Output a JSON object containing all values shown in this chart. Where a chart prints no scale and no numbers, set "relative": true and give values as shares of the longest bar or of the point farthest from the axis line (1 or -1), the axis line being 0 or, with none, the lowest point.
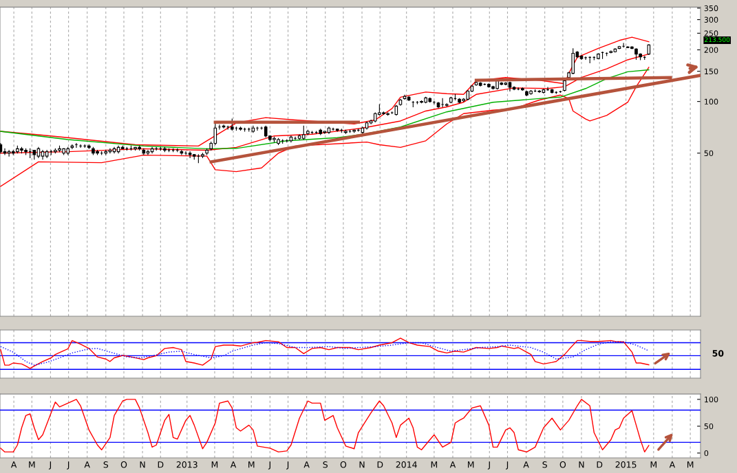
{
  "chart_data": [
    {
      "type": "candlestick",
      "log": true,
      "grid": "x",
      "tick_labels": "y",
      "x": [
        "2012-03-16",
        "2012-03-23",
        "2012-03-30",
        "2012-04-06",
        "2012-04-13",
        "2012-04-20",
        "2012-04-27",
        "2012-05-04",
        "2012-05-11",
        "2012-05-18",
        "2012-05-25",
        "2012-06-01",
        "2012-06-08",
        "2012-06-15",
        "2012-06-22",
        "2012-06-29",
        "2012-07-06",
        "2012-07-13",
        "2012-07-20",
        "2012-07-27",
        "2012-08-03",
        "2012-08-10",
        "2012-08-17",
        "2012-08-24",
        "2012-08-31",
        "2012-09-07",
        "2012-09-14",
        "2012-09-21",
        "2012-09-28",
        "2012-10-05",
        "2012-10-12",
        "2012-10-19",
        "2012-10-26",
        "2012-11-02",
        "2012-11-09",
        "2012-11-16",
        "2012-11-23",
        "2012-11-30",
        "2012-12-07",
        "2012-12-14",
        "2012-12-21",
        "2012-12-28",
        "2013-01-04",
        "2013-01-11",
        "2013-01-18",
        "2013-01-25",
        "2013-02-01",
        "2013-02-08",
        "2013-02-15",
        "2013-02-22",
        "2013-03-01",
        "2013-03-08",
        "2013-03-15",
        "2013-03-22",
        "2013-03-29",
        "2013-04-05",
        "2013-04-12",
        "2013-04-19",
        "2013-04-26",
        "2013-05-03",
        "2013-05-10",
        "2013-05-17",
        "2013-05-24",
        "2013-05-31",
        "2013-06-07",
        "2013-06-14",
        "2013-06-21",
        "2013-06-28",
        "2013-07-05",
        "2013-07-12",
        "2013-07-19",
        "2013-07-26",
        "2013-08-02",
        "2013-08-09",
        "2013-08-16",
        "2013-08-23",
        "2013-08-30",
        "2013-09-06",
        "2013-09-13",
        "2013-09-20",
        "2013-09-27",
        "2013-10-04",
        "2013-10-11",
        "2013-10-18",
        "2013-10-25",
        "2013-11-01",
        "2013-11-08",
        "2013-11-15",
        "2013-11-22",
        "2013-11-29",
        "2013-12-06",
        "2013-12-13",
        "2013-12-20",
        "2013-12-27",
        "2014-01-03",
        "2014-01-10",
        "2014-01-17",
        "2014-01-24",
        "2014-01-31",
        "2014-02-07",
        "2014-02-14",
        "2014-02-21",
        "2014-02-28",
        "2014-03-07",
        "2014-03-14",
        "2014-03-21",
        "2014-03-28",
        "2014-04-04",
        "2014-04-11",
        "2014-04-18",
        "2014-04-25",
        "2014-05-02",
        "2014-05-09",
        "2014-05-16",
        "2014-05-23",
        "2014-05-30",
        "2014-06-06",
        "2014-06-13",
        "2014-06-20",
        "2014-06-27",
        "2014-07-04",
        "2014-07-11",
        "2014-07-18",
        "2014-07-25",
        "2014-08-01",
        "2014-08-08",
        "2014-08-15",
        "2014-08-22",
        "2014-08-29",
        "2014-09-05",
        "2014-09-12",
        "2014-09-19",
        "2014-09-26",
        "2014-10-03",
        "2014-10-10",
        "2014-10-17",
        "2014-10-24",
        "2014-10-31",
        "2014-11-07",
        "2014-11-14",
        "2014-11-21",
        "2014-11-28",
        "2014-12-05",
        "2014-12-12",
        "2014-12-19",
        "2014-12-26",
        "2015-01-02",
        "2015-01-09",
        "2015-01-16",
        "2015-01-23",
        "2015-01-30",
        "2015-02-06",
        "2015-02-13",
        "2015-02-20",
        "2015-02-27"
      ],
      "ohlc": [
        [
          56,
          57,
          50,
          51
        ],
        [
          51,
          53,
          49,
          50
        ],
        [
          50,
          52,
          48,
          51
        ],
        [
          51,
          52,
          49,
          50
        ],
        [
          51,
          55,
          50,
          53
        ],
        [
          53,
          54,
          50,
          52
        ],
        [
          52,
          53,
          49,
          51
        ],
        [
          51,
          53,
          47,
          51
        ],
        [
          52,
          52,
          46,
          49
        ],
        [
          48,
          54,
          47,
          53
        ],
        [
          48,
          52,
          46,
          51
        ],
        [
          48,
          52,
          47,
          51
        ],
        [
          51,
          52,
          49,
          51
        ],
        [
          51,
          53,
          50,
          52
        ],
        [
          52,
          55,
          51,
          53
        ],
        [
          50,
          53,
          49,
          53
        ],
        [
          50,
          54,
          49,
          53
        ],
        [
          54,
          56,
          53,
          55
        ],
        [
          56,
          57,
          54,
          56
        ],
        [
          55,
          56,
          54,
          55
        ],
        [
          55,
          56,
          54,
          55
        ],
        [
          55,
          56,
          53,
          54
        ],
        [
          53,
          54,
          49,
          50
        ],
        [
          51,
          52,
          49,
          50
        ],
        [
          50,
          51,
          49,
          50
        ],
        [
          50,
          52,
          49,
          51
        ],
        [
          51,
          53,
          50,
          52
        ],
        [
          51,
          54,
          50,
          53
        ],
        [
          51,
          55,
          50,
          54
        ],
        [
          54,
          55,
          53,
          53
        ],
        [
          53,
          54,
          52,
          53
        ],
        [
          53,
          55,
          52,
          53
        ],
        [
          53,
          54,
          52,
          54
        ],
        [
          54,
          55,
          52,
          53
        ],
        [
          52,
          53,
          49,
          50
        ],
        [
          50,
          52,
          49,
          51
        ],
        [
          51,
          54,
          50,
          53
        ],
        [
          53,
          54,
          52,
          53
        ],
        [
          53,
          54,
          52,
          53
        ],
        [
          53,
          54,
          51,
          52
        ],
        [
          52,
          53,
          51,
          52
        ],
        [
          52,
          53,
          51,
          52
        ],
        [
          52,
          53,
          51,
          52
        ],
        [
          51,
          52,
          49,
          50
        ],
        [
          50,
          51,
          49,
          50
        ],
        [
          50,
          51,
          47,
          49
        ],
        [
          49,
          49,
          46,
          48
        ],
        [
          48,
          49,
          44,
          48
        ],
        [
          48,
          50,
          47,
          49
        ],
        [
          50,
          53,
          49,
          52
        ],
        [
          53,
          58,
          52,
          57
        ],
        [
          57,
          75,
          56,
          70
        ],
        [
          71,
          73,
          69,
          71
        ],
        [
          72,
          73,
          70,
          71
        ],
        [
          71,
          72,
          69,
          71
        ],
        [
          71,
          79,
          68,
          69
        ],
        [
          70,
          71,
          68,
          70
        ],
        [
          70,
          71,
          68,
          69
        ],
        [
          69,
          70,
          67,
          69
        ],
        [
          69,
          70,
          67,
          69
        ],
        [
          67,
          72,
          66,
          70
        ],
        [
          70,
          71,
          68,
          70
        ],
        [
          70,
          71,
          69,
          70
        ],
        [
          71,
          72,
          62,
          63
        ],
        [
          63,
          63,
          59,
          60
        ],
        [
          60,
          62,
          58,
          61
        ],
        [
          57,
          61,
          56,
          60
        ],
        [
          59,
          60,
          57,
          59
        ],
        [
          59,
          60,
          58,
          59
        ],
        [
          59,
          63,
          58,
          62
        ],
        [
          61,
          62,
          60,
          61
        ],
        [
          61,
          64,
          60,
          63
        ],
        [
          61,
          72,
          60,
          64
        ],
        [
          65,
          68,
          64,
          67
        ],
        [
          66,
          67,
          65,
          66
        ],
        [
          66,
          67,
          65,
          66
        ],
        [
          68,
          69,
          64,
          65
        ],
        [
          66,
          67,
          65,
          67
        ],
        [
          66,
          71,
          65,
          70
        ],
        [
          69,
          70,
          68,
          69
        ],
        [
          69,
          69,
          67,
          68
        ],
        [
          68,
          69,
          66,
          68
        ],
        [
          66,
          68,
          65,
          67
        ],
        [
          67,
          68,
          66,
          67
        ],
        [
          67,
          68,
          66,
          68
        ],
        [
          68,
          69,
          67,
          68
        ],
        [
          66,
          71,
          65,
          70
        ],
        [
          70,
          76,
          69,
          75
        ],
        [
          75,
          78,
          74,
          77
        ],
        [
          77,
          86,
          76,
          85
        ],
        [
          84,
          96,
          83,
          86
        ],
        [
          86,
          87,
          84,
          85
        ],
        [
          84,
          86,
          83,
          85
        ],
        [
          86,
          87,
          85,
          86
        ],
        [
          84,
          95,
          83,
          94
        ],
        [
          96,
          103,
          95,
          102
        ],
        [
          104,
          109,
          103,
          107
        ],
        [
          106,
          107,
          101,
          102
        ],
        [
          99,
          100,
          93,
          99
        ],
        [
          99,
          100,
          97,
          99
        ],
        [
          100,
          101,
          98,
          99
        ],
        [
          99,
          106,
          98,
          105
        ],
        [
          104,
          105,
          99,
          100
        ],
        [
          99,
          100,
          97,
          99
        ],
        [
          98,
          99,
          92,
          93
        ],
        [
          96,
          104,
          93,
          96
        ],
        [
          95,
          97,
          94,
          96
        ],
        [
          99,
          106,
          98,
          105
        ],
        [
          104,
          110,
          102,
          104
        ],
        [
          103,
          104,
          98,
          99
        ],
        [
          101,
          104,
          100,
          103
        ],
        [
          103,
          116,
          102,
          115
        ],
        [
          115,
          124,
          114,
          123
        ],
        [
          125,
          133,
          124,
          129
        ],
        [
          128,
          129,
          123,
          124
        ],
        [
          126,
          127,
          125,
          126
        ],
        [
          126,
          127,
          121,
          122
        ],
        [
          122,
          123,
          118,
          119
        ],
        [
          119,
          133,
          118,
          132
        ],
        [
          128,
          129,
          125,
          126
        ],
        [
          126,
          129,
          125,
          128
        ],
        [
          129,
          130,
          115,
          121
        ],
        [
          121,
          122,
          117,
          118
        ],
        [
          118,
          120,
          117,
          118
        ],
        [
          119,
          120,
          116,
          117
        ],
        [
          114,
          115,
          108,
          109
        ],
        [
          111,
          116,
          110,
          115
        ],
        [
          115,
          117,
          114,
          115
        ],
        [
          115,
          116,
          113,
          114
        ],
        [
          113,
          118,
          112,
          117
        ],
        [
          117,
          121,
          116,
          117
        ],
        [
          117,
          118,
          112,
          113
        ],
        [
          113,
          114,
          111,
          113
        ],
        [
          114,
          115,
          113,
          114
        ],
        [
          116,
          134,
          115,
          132
        ],
        [
          138,
          148,
          137,
          147
        ],
        [
          146,
          203,
          145,
          191
        ],
        [
          194,
          196,
          180,
          182
        ],
        [
          184,
          185,
          176,
          178
        ],
        [
          180,
          182,
          176,
          180
        ],
        [
          181,
          182,
          168,
          181
        ],
        [
          181,
          182,
          175,
          181
        ],
        [
          178,
          190,
          177,
          189
        ],
        [
          193,
          194,
          178,
          193
        ],
        [
          191,
          192,
          185,
          191
        ],
        [
          193,
          197,
          192,
          196
        ],
        [
          195,
          203,
          194,
          202
        ],
        [
          204,
          210,
          203,
          209
        ],
        [
          210,
          218,
          207,
          210
        ],
        [
          208,
          209,
          206,
          206
        ],
        [
          208,
          209,
          203,
          204
        ],
        [
          202,
          203,
          176,
          189
        ],
        [
          189,
          190,
          175,
          182
        ],
        [
          181,
          183,
          176,
          181
        ],
        [
          189,
          214,
          188,
          213.5
        ]
      ],
      "series": [
        {
          "type": "line",
          "color": "#ff0000",
          "x": [
            "2012-03-16",
            "2012-05-18",
            "2012-07-06",
            "2012-10-26",
            "2013-02-08",
            "2013-02-22",
            "2013-04-12",
            "2013-05-31",
            "2013-07-19",
            "2013-10-25",
            "2013-11-29",
            "2013-12-27",
            "2014-01-10",
            "2014-02-21",
            "2014-03-28",
            "2014-04-25",
            "2014-05-16",
            "2014-07-04",
            "2014-08-29",
            "2014-10-10",
            "2014-10-17",
            "2014-10-31",
            "2014-12-05",
            "2015-01-09",
            "2015-01-30",
            "2015-02-27"
          ],
          "values": [
            67,
            64,
            61.5,
            56,
            55,
            59,
            75,
            80.5,
            78,
            74,
            78,
            91,
            106,
            113.5,
            111,
            110,
            132,
            138,
            133,
            127,
            146,
            181,
            204,
            227,
            237,
            223
          ]
        },
        {
          "type": "line",
          "color": "#ff0000",
          "x": [
            "2012-03-16",
            "2012-07-06",
            "2012-11-09",
            "2013-02-22",
            "2013-04-12",
            "2013-06-14",
            "2013-08-16",
            "2013-11-08",
            "2014-01-10",
            "2014-02-21",
            "2014-03-28",
            "2014-04-25",
            "2014-05-16",
            "2014-07-18",
            "2014-09-12",
            "2014-10-10",
            "2014-11-07",
            "2014-12-19",
            "2015-01-23",
            "2015-02-27"
          ],
          "values": [
            50,
            51,
            53,
            52,
            54,
            63,
            64.4,
            70,
            77,
            88,
            93,
            99,
            110,
            120,
            119,
            122,
            138,
            155,
            175,
            189
          ]
        },
        {
          "type": "line",
          "color": "#ff0000",
          "x": [
            "2012-03-16",
            "2012-05-18",
            "2012-08-31",
            "2012-11-09",
            "2013-02-22",
            "2013-03-08",
            "2013-04-12",
            "2013-05-24",
            "2013-06-21",
            "2013-07-19",
            "2013-11-15",
            "2013-12-06",
            "2014-01-10",
            "2014-02-21",
            "2014-03-28",
            "2014-04-25",
            "2014-06-13",
            "2014-07-18",
            "2014-08-29",
            "2014-10-03",
            "2014-10-17",
            "2014-10-24",
            "2014-11-14",
            "2014-11-21",
            "2014-12-19",
            "2015-01-23",
            "2015-02-06",
            "2015-02-27"
          ],
          "values": [
            32,
            44.5,
            44,
            48.7,
            48,
            40,
            39,
            41,
            50,
            55,
            58,
            56,
            54,
            59,
            74,
            85,
            89,
            91,
            102,
            109,
            104,
            88,
            79,
            77,
            83,
            99,
            122,
            158
          ]
        },
        {
          "type": "line",
          "color": "#00b000",
          "x": [
            "2012-03-16",
            "2012-07-06",
            "2012-11-09",
            "2013-02-22",
            "2013-04-12",
            "2013-07-05",
            "2013-09-27",
            "2013-11-08",
            "2014-01-10",
            "2014-03-28",
            "2014-06-13",
            "2014-08-29",
            "2014-10-03",
            "2014-11-14",
            "2014-12-19",
            "2015-01-23",
            "2015-02-27"
          ],
          "values": [
            67,
            60,
            55,
            53,
            53.3,
            59,
            61.5,
            64.4,
            71,
            87,
            99,
            104,
            106,
            119,
            136,
            149,
            153
          ]
        },
        {
          "type": "line",
          "color": "#b5533c",
          "x": [
            "2013-03-08",
            "2013-11-01"
          ],
          "values": [
            75.7,
            75.7
          ]
        },
        {
          "type": "line",
          "color": "#b5533c",
          "x": [
            "2014-05-16",
            "2015-04-04"
          ],
          "values": [
            133,
            138
          ]
        },
        {
          "type": "line",
          "color": "#b5533c",
          "x": [
            "2013-03-01",
            "2015-05-24"
          ],
          "values": [
            44.5,
            142
          ]
        }
      ],
      "xlim": [
        "2012-03-15",
        "2015-05-24"
      ],
      "ylim": [
        5.6,
        355
      ],
      "yticks": [
        50,
        100,
        150,
        200,
        250,
        300,
        350
      ],
      "annotations": [
        "213.500"
      ]
    },
    {
      "type": "line",
      "relative": true,
      "grid": "x",
      "tick_labels": false,
      "series": [
        {
          "color": "#ff0000",
          "x": [
            "2012-03-16",
            "2012-03-23",
            "2012-03-30",
            "2012-04-06",
            "2012-04-20",
            "2012-04-27",
            "2012-05-04",
            "2012-05-11",
            "2012-05-25",
            "2012-06-08",
            "2012-06-15",
            "2012-07-06",
            "2012-07-13",
            "2012-07-27",
            "2012-08-10",
            "2012-08-24",
            "2012-09-07",
            "2012-09-14",
            "2012-09-21",
            "2012-10-05",
            "2012-10-19",
            "2012-11-09",
            "2012-11-16",
            "2012-11-30",
            "2012-12-14",
            "2012-12-28",
            "2013-01-11",
            "2013-01-18",
            "2013-02-01",
            "2013-02-15",
            "2013-03-01",
            "2013-03-08",
            "2013-03-22",
            "2013-04-05",
            "2013-04-19",
            "2013-05-10",
            "2013-05-17",
            "2013-05-31",
            "2013-06-21",
            "2013-07-05",
            "2013-07-19",
            "2013-08-02",
            "2013-08-16",
            "2013-08-30",
            "2013-09-13",
            "2013-09-27",
            "2013-10-18",
            "2013-11-01",
            "2013-11-22",
            "2013-12-06",
            "2013-12-27",
            "2014-01-10",
            "2014-01-24",
            "2014-02-07",
            "2014-02-28",
            "2014-03-14",
            "2014-03-28",
            "2014-04-11",
            "2014-04-25",
            "2014-05-16",
            "2014-06-06",
            "2014-06-20",
            "2014-06-27",
            "2014-07-18",
            "2014-07-25",
            "2014-08-15",
            "2014-08-22",
            "2014-09-05",
            "2014-09-19",
            "2014-09-26",
            "2014-10-10",
            "2014-10-17",
            "2014-10-31",
            "2014-11-07",
            "2014-11-21",
            "2014-12-05",
            "2014-12-26",
            "2015-01-02",
            "2015-01-16",
            "2015-01-30",
            "2015-02-06",
            "2015-02-13",
            "2015-02-27"
          ],
          "values": [
            0.62,
            0.11,
            0.11,
            0.18,
            0.15,
            0.08,
            0,
            0.08,
            0.23,
            0.35,
            0.46,
            0.65,
            0.92,
            0.8,
            0.66,
            0.38,
            0.31,
            0.23,
            0.35,
            0.43,
            0.38,
            0.29,
            0.35,
            0.42,
            0.66,
            0.69,
            0.62,
            0.23,
            0.18,
            0.11,
            0.31,
            0.72,
            0.77,
            0.77,
            0.74,
            0.85,
            0.86,
            0.92,
            0.88,
            0.69,
            0.69,
            0.49,
            0.66,
            0.69,
            0.62,
            0.69,
            0.69,
            0.62,
            0.69,
            0.77,
            0.85,
            1,
            0.85,
            0.77,
            0.72,
            0.57,
            0.51,
            0.57,
            0.54,
            0.69,
            0.66,
            0.69,
            0.74,
            0.66,
            0.69,
            0.46,
            0.23,
            0.15,
            0.2,
            0.23,
            0.46,
            0.62,
            0.92,
            0.92,
            0.89,
            0.89,
            0.92,
            0.89,
            0.88,
            0.54,
            0.18,
            0.18,
            0.12
          ]
        },
        {
          "color": "#0000ff",
          "line_style": "dotted",
          "x": [
            "2012-03-16",
            "2012-04-06",
            "2012-04-27",
            "2012-05-11",
            "2012-06-01",
            "2012-06-22",
            "2012-07-13",
            "2012-08-10",
            "2012-08-24",
            "2012-09-14",
            "2012-10-12",
            "2012-11-02",
            "2012-11-23",
            "2012-12-21",
            "2013-01-11",
            "2013-02-01",
            "2013-03-01",
            "2013-03-22",
            "2013-04-05",
            "2013-05-10",
            "2013-05-31",
            "2013-06-21",
            "2013-07-19",
            "2013-08-09",
            "2013-09-13",
            "2013-10-11",
            "2013-11-01",
            "2013-11-29",
            "2013-12-27",
            "2014-01-24",
            "2014-02-14",
            "2014-03-07",
            "2014-04-04",
            "2014-04-25",
            "2014-05-23",
            "2014-06-20",
            "2014-07-11",
            "2014-08-15",
            "2014-09-05",
            "2014-09-26",
            "2014-10-24",
            "2014-11-14",
            "2014-12-05",
            "2014-12-26",
            "2015-01-16",
            "2015-02-06",
            "2015-02-27"
          ],
          "values": [
            0.72,
            0.54,
            0.23,
            0.11,
            0.2,
            0.35,
            0.51,
            0.65,
            0.66,
            0.54,
            0.38,
            0.35,
            0.42,
            0.54,
            0.57,
            0.46,
            0.35,
            0.42,
            0.57,
            0.77,
            0.85,
            0.82,
            0.69,
            0.69,
            0.72,
            0.66,
            0.69,
            0.72,
            0.77,
            0.85,
            0.85,
            0.72,
            0.57,
            0.62,
            0.69,
            0.72,
            0.77,
            0.69,
            0.54,
            0.31,
            0.38,
            0.62,
            0.8,
            0.88,
            0.88,
            0.77,
            0.58
          ]
        }
      ],
      "ref_lines": [
        {
          "axis": "y",
          "value": 0.85,
          "color": "#0000ff"
        },
        {
          "axis": "y",
          "value": 0.42,
          "color": "#0000ff"
        },
        {
          "axis": "y",
          "value": -0.03,
          "color": "#0000ff"
        }
      ],
      "annotations": [
        "50"
      ],
      "xlim": [
        "2012-03-15",
        "2015-05-24"
      ]
    },
    {
      "type": "line",
      "grid": "x",
      "x": [
        "2012-03-16",
        "2012-03-23",
        "2012-04-06",
        "2012-04-13",
        "2012-04-20",
        "2012-04-27",
        "2012-05-04",
        "2012-05-11",
        "2012-05-18",
        "2012-05-25",
        "2012-06-08",
        "2012-06-15",
        "2012-06-22",
        "2012-07-06",
        "2012-07-20",
        "2012-07-27",
        "2012-08-10",
        "2012-08-24",
        "2012-08-31",
        "2012-09-14",
        "2012-09-21",
        "2012-10-05",
        "2012-10-12",
        "2012-10-26",
        "2012-11-02",
        "2012-11-16",
        "2012-11-23",
        "2012-11-30",
        "2012-12-14",
        "2012-12-21",
        "2012-12-28",
        "2013-01-04",
        "2013-01-18",
        "2013-01-25",
        "2013-02-01",
        "2013-02-15",
        "2013-02-22",
        "2013-03-08",
        "2013-03-15",
        "2013-03-29",
        "2013-04-05",
        "2013-04-12",
        "2013-04-19",
        "2013-05-03",
        "2013-05-10",
        "2013-05-17",
        "2013-06-07",
        "2013-06-21",
        "2013-07-05",
        "2013-07-12",
        "2013-07-26",
        "2013-08-09",
        "2013-08-16",
        "2013-08-30",
        "2013-09-06",
        "2013-09-20",
        "2013-09-27",
        "2013-10-11",
        "2013-10-25",
        "2013-11-01",
        "2013-11-22",
        "2013-12-06",
        "2013-12-13",
        "2013-12-27",
        "2014-01-03",
        "2014-01-10",
        "2014-01-24",
        "2014-01-31",
        "2014-02-07",
        "2014-02-14",
        "2014-02-28",
        "2014-03-07",
        "2014-03-21",
        "2014-04-04",
        "2014-04-11",
        "2014-04-18",
        "2014-04-25",
        "2014-05-09",
        "2014-05-23",
        "2014-06-06",
        "2014-06-13",
        "2014-06-20",
        "2014-07-04",
        "2014-07-11",
        "2014-07-18",
        "2014-07-25",
        "2014-08-08",
        "2014-08-22",
        "2014-09-05",
        "2014-09-19",
        "2014-10-03",
        "2014-10-17",
        "2014-10-31",
        "2014-11-07",
        "2014-11-21",
        "2014-11-28",
        "2014-12-12",
        "2014-12-26",
        "2015-01-02",
        "2015-01-09",
        "2015-01-16",
        "2015-01-30",
        "2015-02-06",
        "2015-02-13",
        "2015-02-20",
        "2015-02-27"
      ],
      "series": [
        {
          "color": "#ff0000",
          "values": [
            9,
            2,
            2,
            15,
            47,
            70,
            73,
            47,
            25,
            34,
            75,
            95,
            86,
            93,
            100,
            88,
            43,
            15,
            6,
            29,
            70,
            97,
            100,
            100,
            84,
            38,
            11,
            15,
            61,
            72,
            29,
            26,
            61,
            70,
            52,
            8,
            20,
            56,
            93,
            97,
            84,
            47,
            41,
            52,
            43,
            13,
            9,
            2,
            4,
            15,
            65,
            97,
            93,
            93,
            61,
            70,
            47,
            13,
            8,
            38,
            75,
            97,
            88,
            56,
            29,
            52,
            65,
            47,
            11,
            6,
            25,
            34,
            11,
            20,
            56,
            61,
            65,
            84,
            88,
            52,
            11,
            11,
            43,
            47,
            38,
            6,
            2,
            11,
            47,
            65,
            43,
            61,
            88,
            100,
            88,
            38,
            6,
            25,
            43,
            47,
            65,
            79,
            52,
            25,
            2,
            14
          ]
        }
      ],
      "ref_lines": [
        {
          "axis": "y",
          "value": 80,
          "color": "#0000ff"
        },
        {
          "axis": "y",
          "value": 20,
          "color": "#0000ff"
        }
      ],
      "xlim": [
        "2012-03-15",
        "2015-05-24"
      ],
      "xticks": [
        {
          "value": "2012-04-07",
          "label": "A"
        },
        {
          "value": "2012-05-07",
          "label": "M"
        },
        {
          "value": "2012-06-07",
          "label": "J"
        },
        {
          "value": "2012-07-07",
          "label": "J"
        },
        {
          "value": "2012-08-07",
          "label": "A"
        },
        {
          "value": "2012-09-07",
          "label": "S"
        },
        {
          "value": "2012-10-07",
          "label": "O"
        },
        {
          "value": "2012-11-07",
          "label": "N"
        },
        {
          "value": "2012-12-07",
          "label": "D"
        },
        {
          "value": "2013-01-20",
          "label": "2013"
        },
        {
          "value": "2013-03-07",
          "label": "M"
        },
        {
          "value": "2013-04-07",
          "label": "A"
        },
        {
          "value": "2013-05-07",
          "label": "M"
        },
        {
          "value": "2013-06-07",
          "label": "J"
        },
        {
          "value": "2013-07-07",
          "label": "J"
        },
        {
          "value": "2013-08-07",
          "label": "A"
        },
        {
          "value": "2013-09-07",
          "label": "S"
        },
        {
          "value": "2013-10-07",
          "label": "O"
        },
        {
          "value": "2013-11-07",
          "label": "N"
        },
        {
          "value": "2013-12-07",
          "label": "D"
        },
        {
          "value": "2014-01-20",
          "label": "2014"
        },
        {
          "value": "2014-03-07",
          "label": "M"
        },
        {
          "value": "2014-04-07",
          "label": "A"
        },
        {
          "value": "2014-05-07",
          "label": "M"
        },
        {
          "value": "2014-06-07",
          "label": "J"
        },
        {
          "value": "2014-07-07",
          "label": "J"
        },
        {
          "value": "2014-08-07",
          "label": "A"
        },
        {
          "value": "2014-09-07",
          "label": "S"
        },
        {
          "value": "2014-10-07",
          "label": "O"
        },
        {
          "value": "2014-11-07",
          "label": "N"
        },
        {
          "value": "2014-12-07",
          "label": "D"
        },
        {
          "value": "2015-01-20",
          "label": "2015"
        },
        {
          "value": "2015-03-07",
          "label": "M"
        },
        {
          "value": "2015-04-07",
          "label": "A"
        },
        {
          "value": "2015-05-07",
          "label": "M"
        }
      ],
      "ylim": [
        -9,
        110
      ],
      "yticks": [
        0,
        50,
        100
      ]
    }
  ]
}
